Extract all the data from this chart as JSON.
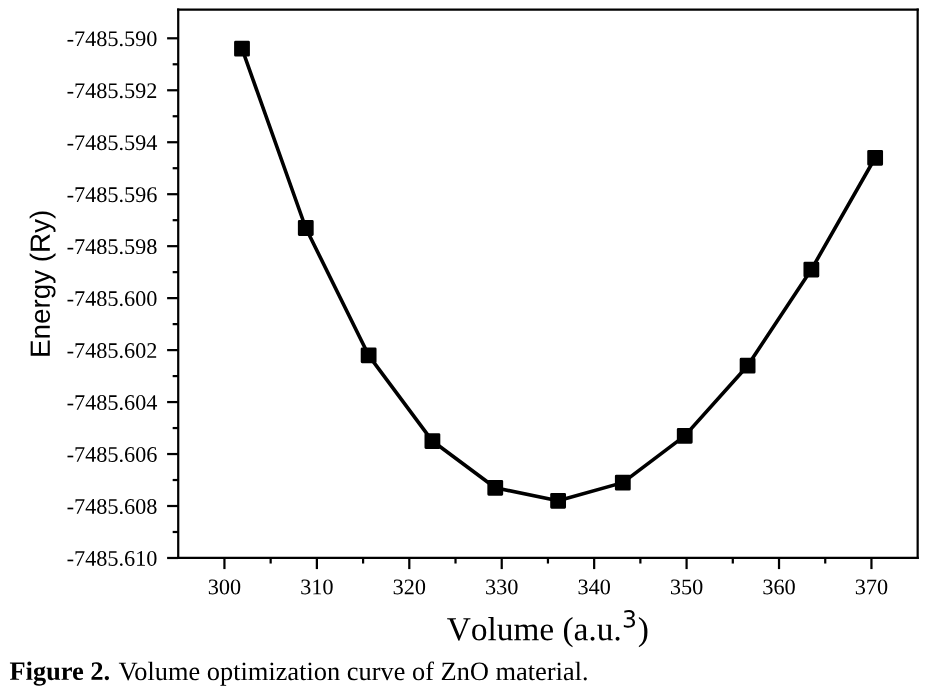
{
  "chart_data": {
    "type": "scatter",
    "xlabel": "Volume (a.u.$^{3}$)",
    "ylabel": "Energy (Ry)",
    "annotations": [
      "Figure 2.",
      "Volume optimization curve of ZnO material."
    ],
    "x": [
      301.9,
      308.8,
      315.6,
      322.5,
      329.3,
      336.1,
      343.1,
      349.8,
      356.6,
      363.5,
      370.4
    ],
    "series": [
      {
        "color": "#000000",
        "marker": "square",
        "values": [
          -7485.5904,
          -7485.5973,
          -7485.6022,
          -7485.6055,
          -7485.6073,
          -7485.6078,
          -7485.6071,
          -7485.6053,
          -7485.6026,
          -7485.5989,
          -7485.5946
        ]
      },
      {
        "type": "line",
        "color": "#000000",
        "marker": "none",
        "line_style": "solid",
        "x": [
          301.9,
          308.8,
          315.6,
          322.5,
          329.3,
          336.1,
          343.1,
          349.8,
          356.6,
          363.5,
          370.4
        ],
        "values": [
          -7485.5904,
          -7485.5973,
          -7485.6022,
          -7485.6055,
          -7485.6073,
          -7485.6078,
          -7485.6071,
          -7485.6053,
          -7485.6026,
          -7485.5989,
          -7485.5946
        ]
      }
    ],
    "xlim": [
      295,
      375
    ],
    "xticks": [
      300,
      {
        "value": 305,
        "label": null
      },
      310,
      {
        "value": 315,
        "label": null
      },
      320,
      {
        "value": 325,
        "label": null
      },
      330,
      {
        "value": 335,
        "label": null
      },
      340,
      {
        "value": 345,
        "label": null
      },
      350,
      {
        "value": 355,
        "label": null
      },
      360,
      {
        "value": 365,
        "label": null
      },
      370
    ],
    "ylim": [
      -7485.61,
      -7485.5889
    ],
    "yticks": [
      {
        "value": -7485.61,
        "label": "-7485.610"
      },
      {
        "value": -7485.609,
        "label": null
      },
      {
        "value": -7485.608,
        "label": "-7485.608"
      },
      {
        "value": -7485.607,
        "label": null
      },
      {
        "value": -7485.606,
        "label": "-7485.606"
      },
      {
        "value": -7485.605,
        "label": null
      },
      {
        "value": -7485.604,
        "label": "-7485.604"
      },
      {
        "value": -7485.603,
        "label": null
      },
      {
        "value": -7485.602,
        "label": "-7485.602"
      },
      {
        "value": -7485.601,
        "label": null
      },
      {
        "value": -7485.6,
        "label": "-7485.600"
      },
      {
        "value": -7485.599,
        "label": null
      },
      {
        "value": -7485.598,
        "label": "-7485.598"
      },
      {
        "value": -7485.597,
        "label": null
      },
      {
        "value": -7485.596,
        "label": "-7485.596"
      },
      {
        "value": -7485.595,
        "label": null
      },
      {
        "value": -7485.594,
        "label": "-7485.594"
      },
      {
        "value": -7485.593,
        "label": null
      },
      {
        "value": -7485.592,
        "label": "-7485.592"
      },
      {
        "value": -7485.591,
        "label": null
      },
      {
        "value": -7485.59,
        "label": "-7485.590"
      }
    ],
    "grid": false,
    "legend": false
  }
}
